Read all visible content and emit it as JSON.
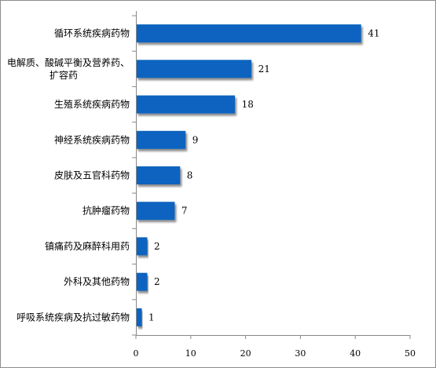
{
  "chart_data": {
    "type": "bar",
    "orientation": "horizontal",
    "categories": [
      [
        "循环系统疾病药物"
      ],
      [
        "电解质、酸碱平衡及营养药、",
        "扩容药"
      ],
      [
        "生殖系统疾病药物"
      ],
      [
        "神经系统疾病药物"
      ],
      [
        "皮肤及五官科药物"
      ],
      [
        "抗肿瘤药物"
      ],
      [
        "镇痛药及麻醉科用药"
      ],
      [
        "外科及其他药物"
      ],
      [
        "呼吸系统疾病及抗过敏药物"
      ]
    ],
    "values": [
      41,
      21,
      18,
      9,
      8,
      7,
      2,
      2,
      1
    ],
    "data_labels": [
      "41",
      "21",
      "18",
      "9",
      "8",
      "7",
      "2",
      "2",
      "1"
    ],
    "xlim": [
      0,
      50
    ],
    "xticks": [
      0,
      10,
      20,
      30,
      40,
      50
    ],
    "xtick_labels": [
      "0",
      "10",
      "20",
      "30",
      "40",
      "50"
    ],
    "grid": false,
    "legend": "none",
    "colors": {
      "bar": "#0e64bf",
      "bar_shadow": "#9a9a9a",
      "axis": "#888888"
    }
  }
}
